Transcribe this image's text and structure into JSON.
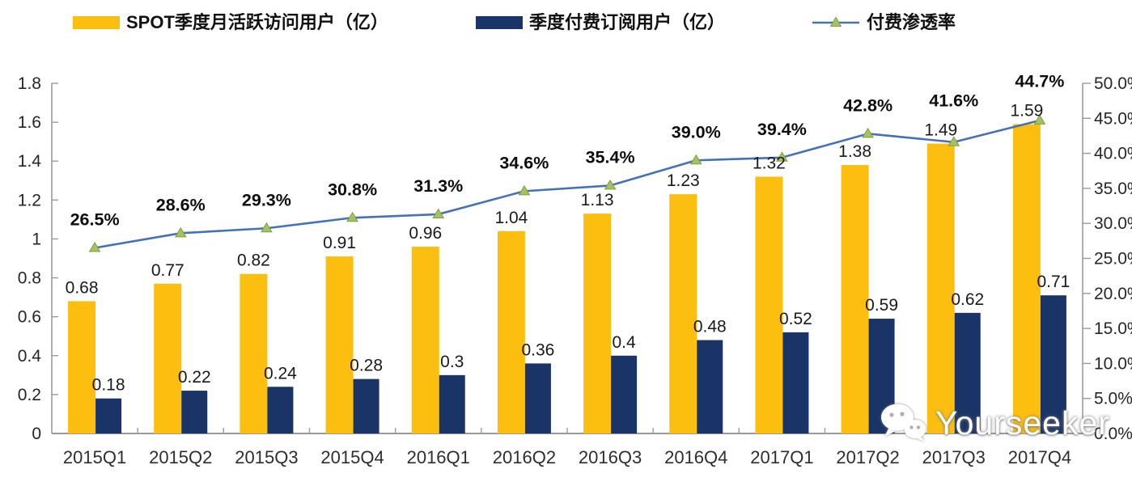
{
  "legend": [
    {
      "label": "SPOT季度月活跃访问用户（亿）",
      "type": "bar",
      "color": "#FCBF10"
    },
    {
      "label": "季度付费订阅用户（亿）",
      "type": "bar",
      "color": "#1A3468"
    },
    {
      "label": "付费渗透率",
      "type": "line",
      "color": "#4671B9",
      "marker_color": "#A4C25F"
    }
  ],
  "chart_data": {
    "type": "combo-bar-line",
    "categories": [
      "2015Q1",
      "2015Q2",
      "2015Q3",
      "2015Q4",
      "2016Q1",
      "2016Q2",
      "2016Q3",
      "2016Q4",
      "2017Q1",
      "2017Q2",
      "2017Q3",
      "2017Q4"
    ],
    "series": [
      {
        "name": "SPOT季度月活跃访问用户（亿）",
        "type": "bar",
        "axis": "left",
        "color": "#FCBF10",
        "values": [
          0.68,
          0.77,
          0.82,
          0.91,
          0.96,
          1.04,
          1.13,
          1.23,
          1.32,
          1.38,
          1.49,
          1.59
        ],
        "labels": [
          "0.68",
          "0.77",
          "0.82",
          "0.91",
          "0.96",
          "1.04",
          "1.13",
          "1.23",
          "1.32",
          "1.38",
          "1.49",
          "1.59"
        ]
      },
      {
        "name": "季度付费订阅用户（亿）",
        "type": "bar",
        "axis": "left",
        "color": "#1A3468",
        "values": [
          0.18,
          0.22,
          0.24,
          0.28,
          0.3,
          0.36,
          0.4,
          0.48,
          0.52,
          0.59,
          0.62,
          0.71
        ],
        "labels": [
          "0.18",
          "0.22",
          "0.24",
          "0.28",
          "0.3",
          "0.36",
          "0.4",
          "0.48",
          "0.52",
          "0.59",
          "0.62",
          "0.71"
        ]
      },
      {
        "name": "付费渗透率",
        "type": "line",
        "axis": "right",
        "color": "#4671B9",
        "marker": "triangle",
        "marker_color": "#A4C25F",
        "values": [
          26.5,
          28.6,
          29.3,
          30.8,
          31.3,
          34.6,
          35.4,
          39.0,
          39.4,
          42.8,
          41.6,
          44.7
        ],
        "labels": [
          "26.5%",
          "28.6%",
          "29.3%",
          "30.8%",
          "31.3%",
          "34.6%",
          "35.4%",
          "39.0%",
          "39.4%",
          "42.8%",
          "41.6%",
          "44.7%"
        ]
      }
    ],
    "left_axis": {
      "min": 0,
      "max": 1.8,
      "step": 0.2,
      "tick_labels": [
        "0",
        "0.2",
        "0.4",
        "0.6",
        "0.8",
        "1",
        "1.2",
        "1.4",
        "1.6",
        "1.8"
      ]
    },
    "right_axis": {
      "min": 0,
      "max": 50,
      "step": 5,
      "tick_labels": [
        "0.0%",
        "5.0%",
        "10.0%",
        "15.0%",
        "20.0%",
        "25.0%",
        "30.0%",
        "35.0%",
        "40.0%",
        "45.0%",
        "50.0%"
      ]
    },
    "grid": false,
    "legend_position": "top"
  },
  "watermark": {
    "text": "Yourseeker",
    "icon": "wechat-icon"
  }
}
